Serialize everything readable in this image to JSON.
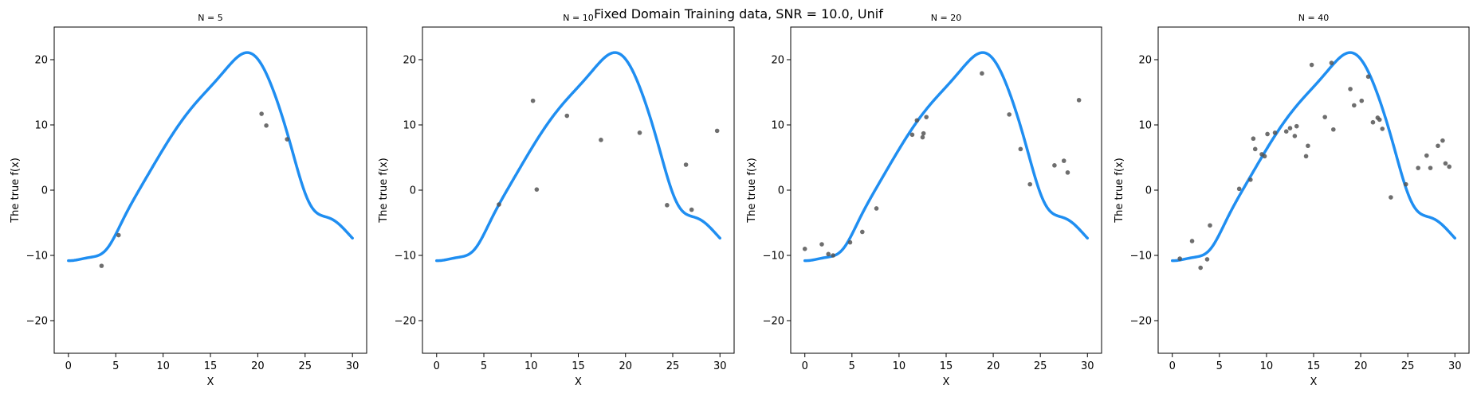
{
  "figure": {
    "suptitle": "Fixed Domain Training data, SNR = 10.0, Unif",
    "colors": {
      "curve": "#1f8ef1",
      "points": "#555555",
      "axes": "#000000"
    }
  },
  "chart_data": [
    {
      "type": "scatter",
      "title": "N = 5",
      "xlabel": "X",
      "ylabel": "The true f(x)",
      "xlim": [
        -1.5,
        31.5
      ],
      "ylim": [
        -25,
        25
      ],
      "xticks": [
        "0",
        "5",
        "10",
        "15",
        "20",
        "25",
        "30"
      ],
      "yticks": [
        "-20",
        "-10",
        "0",
        "10",
        "20"
      ],
      "grid": false,
      "series": [
        {
          "kind": "scatter",
          "x": [
            3.5,
            5.3,
            20.4,
            20.9,
            23.1
          ],
          "y": [
            -11.6,
            -6.9,
            11.7,
            9.9,
            7.8
          ]
        }
      ]
    },
    {
      "type": "scatter",
      "title": "N = 10",
      "xlabel": "X",
      "ylabel": "The true f(x)",
      "xlim": [
        -1.5,
        31.5
      ],
      "ylim": [
        -25,
        25
      ],
      "xticks": [
        "0",
        "5",
        "10",
        "15",
        "20",
        "25",
        "30"
      ],
      "yticks": [
        "-20",
        "-10",
        "0",
        "10",
        "20"
      ],
      "grid": false,
      "series": [
        {
          "kind": "scatter",
          "x": [
            6.6,
            10.2,
            10.6,
            13.8,
            17.4,
            21.5,
            24.4,
            26.4,
            27.0,
            29.7
          ],
          "y": [
            -2.2,
            13.7,
            0.1,
            11.4,
            7.7,
            8.8,
            -2.3,
            3.9,
            -3.0,
            9.1
          ]
        }
      ]
    },
    {
      "type": "scatter",
      "title": "N = 20",
      "xlabel": "X",
      "ylabel": "The true f(x)",
      "xlim": [
        -1.5,
        31.5
      ],
      "ylim": [
        -25,
        25
      ],
      "xticks": [
        "0",
        "5",
        "10",
        "15",
        "20",
        "25",
        "30"
      ],
      "yticks": [
        "-20",
        "-10",
        "0",
        "10",
        "20"
      ],
      "grid": false,
      "series": [
        {
          "kind": "scatter",
          "x": [
            0.0,
            1.8,
            2.5,
            3.0,
            4.8,
            6.1,
            7.6,
            11.4,
            11.9,
            12.5,
            12.6,
            12.9,
            18.8,
            21.7,
            22.9,
            23.9,
            26.5,
            27.5,
            27.9,
            29.1
          ],
          "y": [
            -9.0,
            -8.3,
            -9.8,
            -10.0,
            -8.0,
            -6.4,
            -2.8,
            8.5,
            10.7,
            8.1,
            8.7,
            11.2,
            17.9,
            11.6,
            6.3,
            0.9,
            3.8,
            4.5,
            2.7,
            13.8
          ]
        }
      ]
    },
    {
      "type": "scatter",
      "title": "N = 40",
      "xlabel": "X",
      "ylabel": "The true f(x)",
      "xlim": [
        -1.5,
        31.5
      ],
      "ylim": [
        -25,
        25
      ],
      "xticks": [
        "0",
        "5",
        "10",
        "15",
        "20",
        "25",
        "30"
      ],
      "yticks": [
        "-20",
        "-10",
        "0",
        "10",
        "20"
      ],
      "grid": false,
      "series": [
        {
          "kind": "scatter",
          "x": [
            0.8,
            2.1,
            3.0,
            3.7,
            4.0,
            7.1,
            8.3,
            8.6,
            8.8,
            9.5,
            9.8,
            10.1,
            10.9,
            12.1,
            12.5,
            13.0,
            13.2,
            14.2,
            14.4,
            14.8,
            16.2,
            16.9,
            17.1,
            18.9,
            19.3,
            20.1,
            20.8,
            21.3,
            21.8,
            22.0,
            22.3,
            23.2,
            24.8,
            26.1,
            27.0,
            27.4,
            28.2,
            28.7,
            29.0,
            29.4
          ],
          "y": [
            -10.5,
            -7.8,
            -11.9,
            -10.6,
            -5.4,
            0.2,
            1.6,
            7.9,
            6.3,
            5.5,
            5.2,
            8.6,
            8.8,
            9.0,
            9.5,
            8.3,
            9.8,
            5.2,
            6.8,
            19.2,
            11.2,
            19.5,
            9.3,
            15.5,
            13.0,
            13.7,
            17.4,
            10.4,
            11.1,
            10.8,
            9.4,
            -1.1,
            0.9,
            3.4,
            5.3,
            3.4,
            6.8,
            7.6,
            4.1,
            3.6
          ]
        }
      ]
    }
  ]
}
